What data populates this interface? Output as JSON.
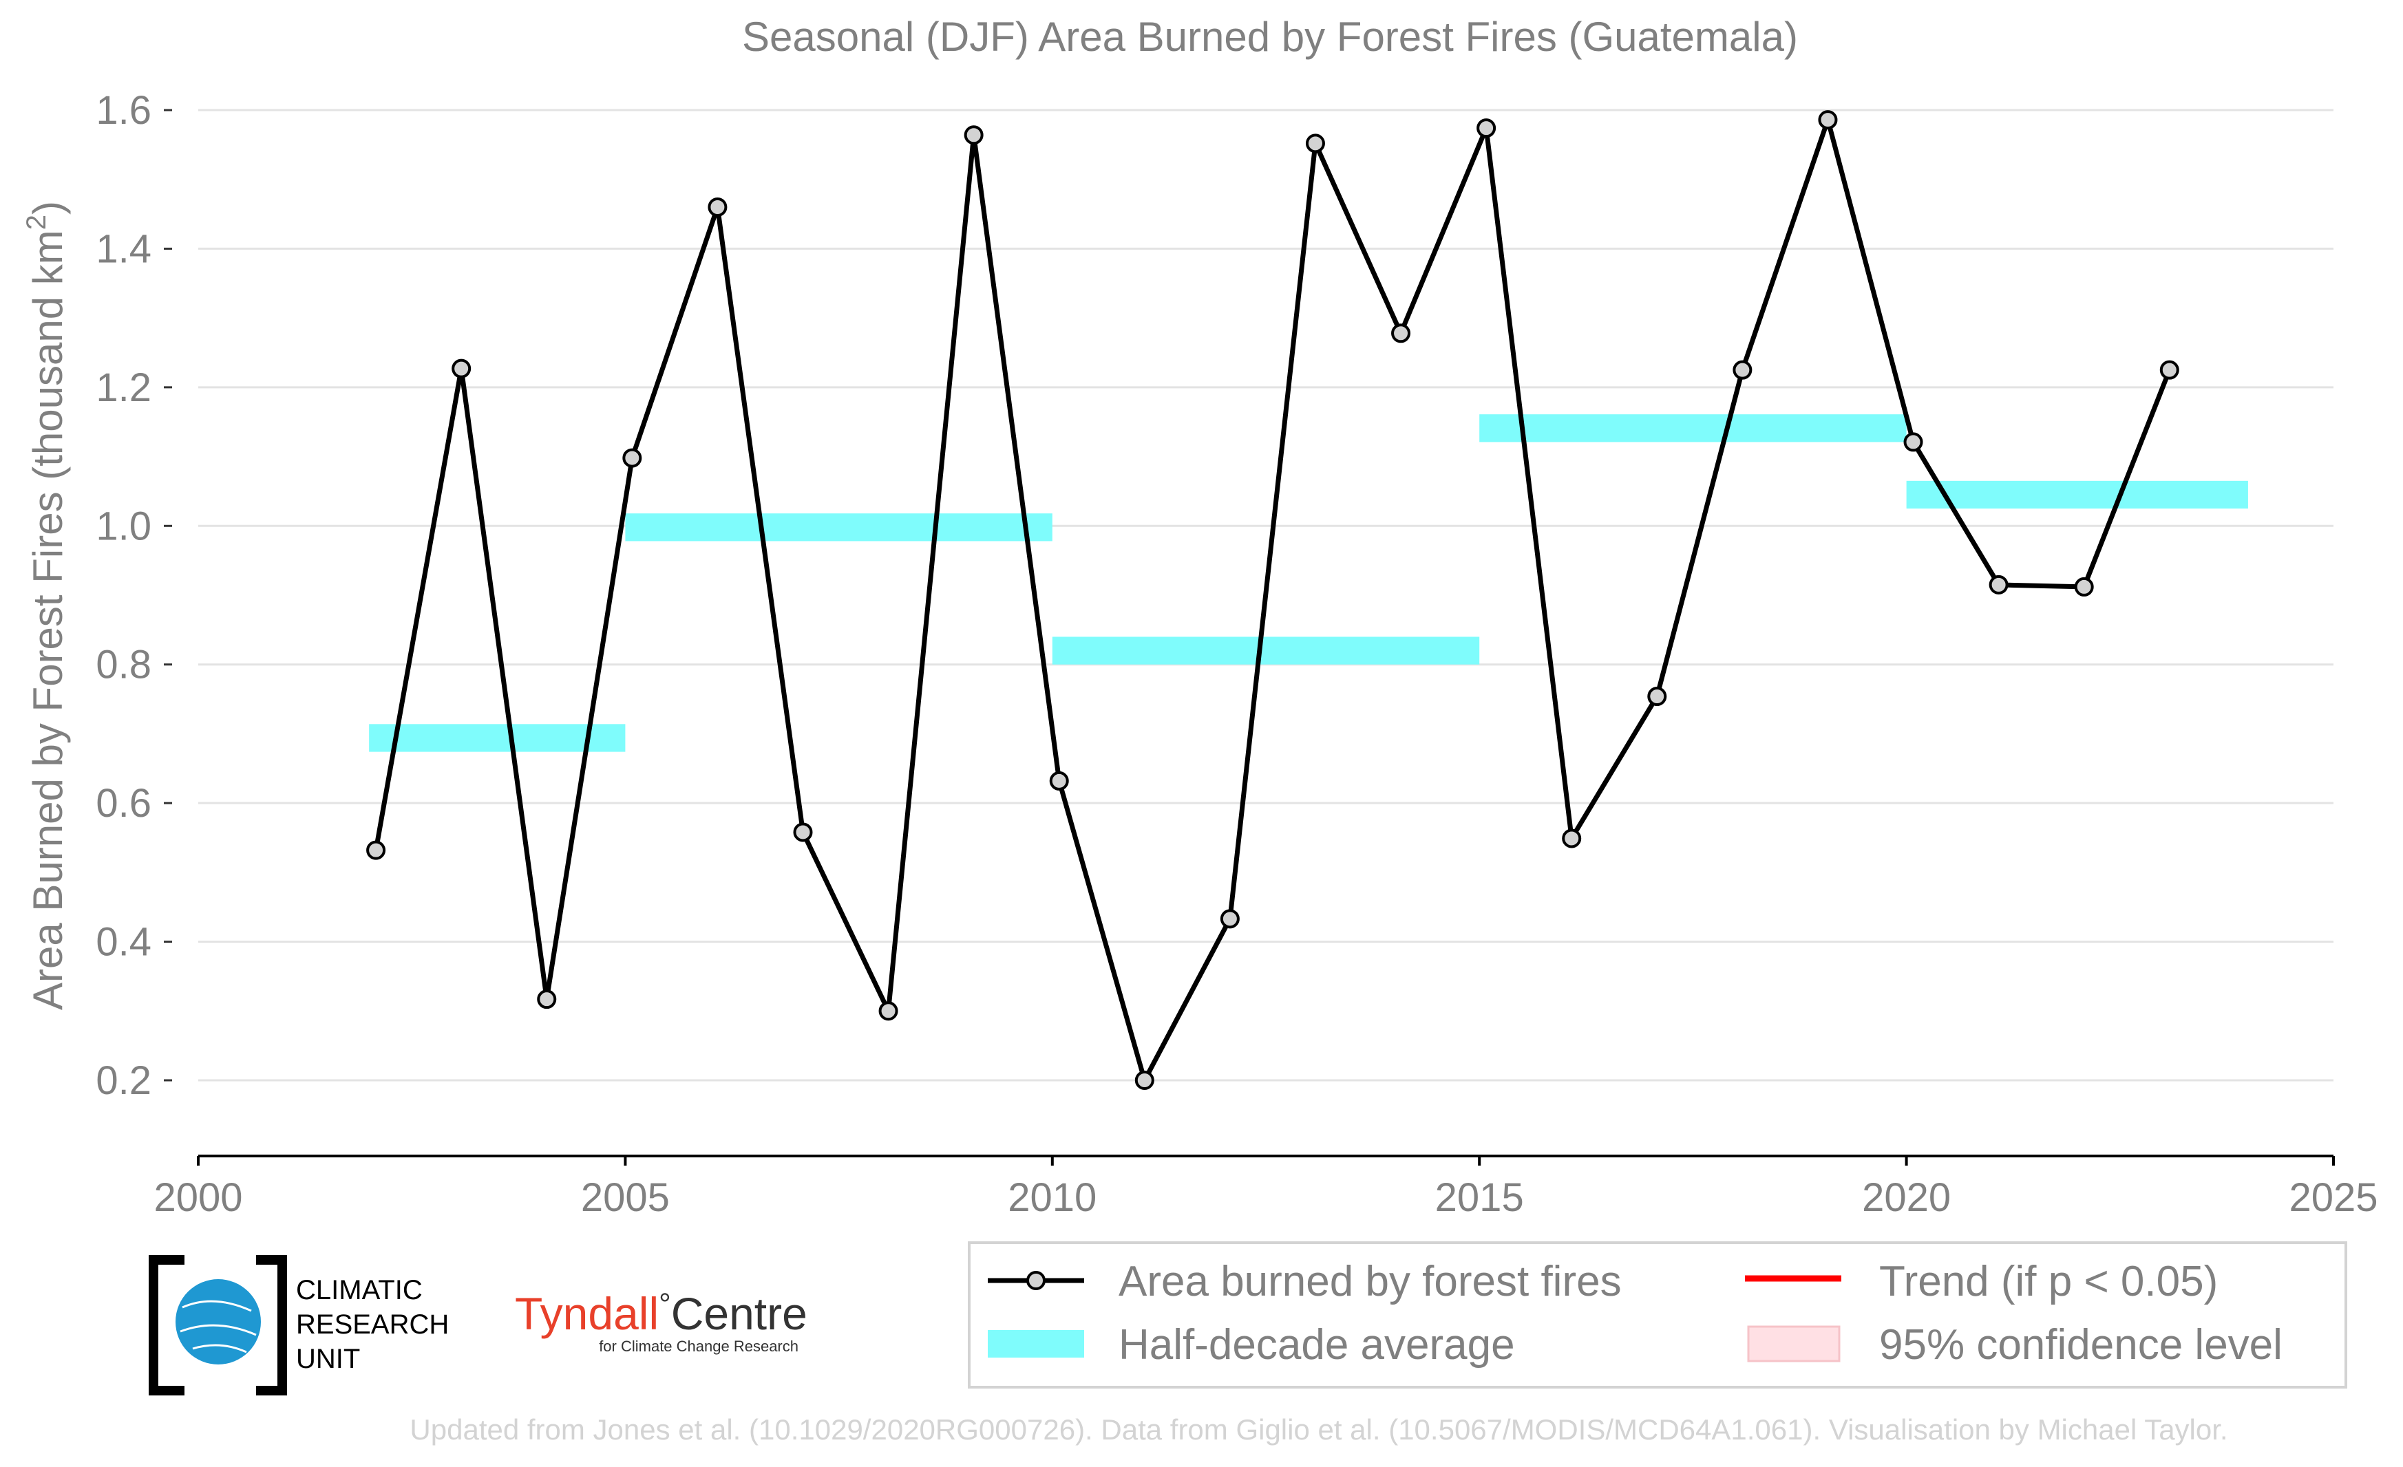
{
  "chart_data": {
    "type": "line",
    "title": "Seasonal (DJF) Area Burned by Forest Fires (Guatemala)",
    "ylabel": "Area Burned by Forest Fires (thousand km",
    "ylabel_sup": "2",
    "ylabel_close": ")",
    "xlabel": "",
    "xlim": [
      2000,
      2025
    ],
    "ylim": [
      0.1,
      1.6
    ],
    "xticks": [
      2000,
      2005,
      2010,
      2015,
      2020,
      2025
    ],
    "yticks": [
      0.2,
      0.4,
      0.6,
      0.8,
      1.0,
      1.2,
      1.4,
      1.6
    ],
    "ytick_labels": [
      "0.2",
      "0.4",
      "0.6",
      "0.8",
      "1.0",
      "1.2",
      "1.4",
      "1.6"
    ],
    "grid": true,
    "series": [
      {
        "name": "Area burned by forest fires",
        "color": "#000000",
        "marker_fill": "#d3d3d3",
        "x": [
          2002.08,
          2003.08,
          2004.08,
          2005.08,
          2006.08,
          2007.08,
          2008.08,
          2009.08,
          2010.08,
          2011.08,
          2012.08,
          2013.08,
          2014.08,
          2015.08,
          2016.08,
          2017.08,
          2018.08,
          2019.08,
          2020.08,
          2021.08,
          2022.08,
          2023.08
        ],
        "y": [
          0.532,
          1.227,
          0.317,
          1.098,
          1.46,
          0.558,
          0.3,
          1.564,
          0.632,
          0.2,
          0.433,
          1.552,
          1.278,
          1.574,
          0.549,
          0.754,
          1.225,
          1.586,
          1.121,
          0.915,
          0.912,
          1.225
        ]
      }
    ],
    "half_decade_average": {
      "name": "Half-decade average",
      "color": "#7ffcfc",
      "segments": [
        {
          "x0": 2002,
          "x1": 2005,
          "y": 0.694
        },
        {
          "x0": 2005,
          "x1": 2010,
          "y": 0.998
        },
        {
          "x0": 2010,
          "x1": 2015,
          "y": 0.82
        },
        {
          "x0": 2015,
          "x1": 2020,
          "y": 1.141
        },
        {
          "x0": 2020,
          "x1": 2024,
          "y": 1.045
        }
      ]
    },
    "legend": {
      "placement": "bottom-right",
      "entries": [
        {
          "label": "Area burned by forest fires",
          "kind": "line-marker",
          "color": "#000000"
        },
        {
          "label": "Trend (if p < 0.05)",
          "kind": "line",
          "color": "#ff0000"
        },
        {
          "label": "Half-decade average",
          "kind": "band",
          "color": "#7ffcfc"
        },
        {
          "label": "95% confidence level",
          "kind": "patch",
          "color": "#ffe0e4"
        }
      ]
    }
  },
  "logos": {
    "cru_lines": [
      "CLIMATIC",
      "RESEARCH",
      "UNIT"
    ],
    "tyndall_main": "Tyndall",
    "tyndall_degree": "°",
    "tyndall_centre": "Centre",
    "tyndall_sub": "for Climate Change Research"
  },
  "credit": "Updated from Jones et al. (10.1029/2020RG000726). Data from Giglio et al. (10.5067/MODIS/MCD64A1.061). Visualisation by Michael Taylor."
}
